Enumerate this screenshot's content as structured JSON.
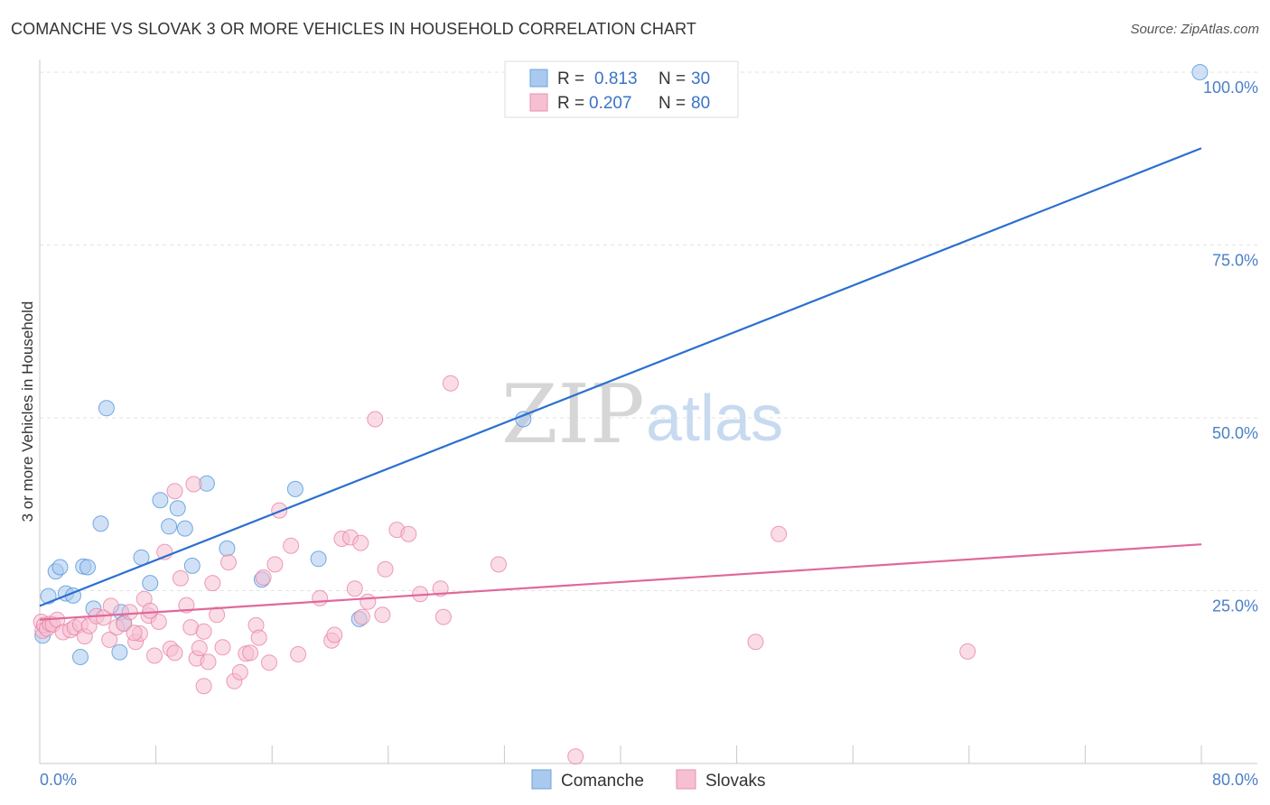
{
  "title": "COMANCHE VS SLOVAK 3 OR MORE VEHICLES IN HOUSEHOLD CORRELATION CHART",
  "source": "Source: ZipAtlas.com",
  "watermark": {
    "zip": "ZIP",
    "atlas": "atlas"
  },
  "legend": {
    "rows": [
      {
        "r_label": "R =",
        "r_value": "0.813",
        "n_label": "N =",
        "n_value": "30",
        "color": "#4a90d9"
      },
      {
        "r_label": "R =",
        "r_value": "0.207",
        "n_label": "N =",
        "n_value": "80",
        "color": "#e87ea0"
      }
    ]
  },
  "chart_data": {
    "type": "scatter",
    "title": "COMANCHE VS SLOVAK 3 OR MORE VEHICLES IN HOUSEHOLD CORRELATION CHART",
    "ylabel": "3 or more Vehicles in Household",
    "xlabel": "",
    "xlim": [
      0,
      80
    ],
    "ylim": [
      0,
      100
    ],
    "x_tick_labels": [
      "0.0%",
      "80.0%"
    ],
    "y_tick_labels": [
      {
        "value": 100,
        "label": "100.0%"
      },
      {
        "value": 75,
        "label": "75.0%"
      },
      {
        "value": 50,
        "label": "50.0%"
      },
      {
        "value": 25,
        "label": "25.0%"
      }
    ],
    "grid": true,
    "legend_position": "top-center",
    "series": [
      {
        "name": "Comanche",
        "color": "#4a90d9",
        "fill": "#a9c9ef",
        "trend": {
          "x": [
            0,
            80
          ],
          "y": [
            22.8,
            89.0
          ]
        },
        "points": [
          [
            0.2,
            18.5
          ],
          [
            0.6,
            24.2
          ],
          [
            1.1,
            27.8
          ],
          [
            1.4,
            28.4
          ],
          [
            1.8,
            24.6
          ],
          [
            2.3,
            24.3
          ],
          [
            2.8,
            15.4
          ],
          [
            3.0,
            28.5
          ],
          [
            3.3,
            28.4
          ],
          [
            3.7,
            22.4
          ],
          [
            4.2,
            34.7
          ],
          [
            4.6,
            51.4
          ],
          [
            5.5,
            16.1
          ],
          [
            5.6,
            21.9
          ],
          [
            5.8,
            20.3
          ],
          [
            7.0,
            29.8
          ],
          [
            7.6,
            26.1
          ],
          [
            8.3,
            38.1
          ],
          [
            8.9,
            34.3
          ],
          [
            9.5,
            36.9
          ],
          [
            10.0,
            34.0
          ],
          [
            10.5,
            28.6
          ],
          [
            11.5,
            40.5
          ],
          [
            12.9,
            31.1
          ],
          [
            15.3,
            26.6
          ],
          [
            17.6,
            39.7
          ],
          [
            19.2,
            29.6
          ],
          [
            22.0,
            20.9
          ],
          [
            33.3,
            49.8
          ],
          [
            79.9,
            100.0
          ]
        ]
      },
      {
        "name": "Slovaks",
        "color": "#e87ea0",
        "fill": "#f6c0d2",
        "trend": {
          "x": [
            0,
            80
          ],
          "y": [
            20.8,
            31.7
          ]
        },
        "points": [
          [
            0.1,
            20.5
          ],
          [
            0.2,
            19.2
          ],
          [
            0.3,
            20.0
          ],
          [
            0.5,
            19.5
          ],
          [
            0.7,
            20.2
          ],
          [
            0.9,
            20.1
          ],
          [
            1.2,
            20.8
          ],
          [
            1.6,
            19.0
          ],
          [
            2.1,
            19.3
          ],
          [
            2.4,
            19.7
          ],
          [
            2.8,
            20.1
          ],
          [
            3.1,
            18.4
          ],
          [
            3.4,
            19.9
          ],
          [
            3.9,
            21.3
          ],
          [
            4.4,
            21.1
          ],
          [
            4.8,
            17.9
          ],
          [
            5.3,
            19.7
          ],
          [
            5.8,
            20.2
          ],
          [
            6.2,
            21.9
          ],
          [
            6.6,
            17.6
          ],
          [
            6.9,
            18.8
          ],
          [
            7.2,
            23.8
          ],
          [
            7.5,
            21.4
          ],
          [
            7.9,
            15.6
          ],
          [
            8.2,
            20.5
          ],
          [
            8.6,
            30.6
          ],
          [
            9.0,
            16.6
          ],
          [
            9.3,
            16.0
          ],
          [
            9.7,
            26.8
          ],
          [
            10.1,
            22.9
          ],
          [
            10.4,
            19.7
          ],
          [
            10.8,
            15.2
          ],
          [
            11.0,
            16.7
          ],
          [
            11.3,
            19.1
          ],
          [
            11.6,
            14.7
          ],
          [
            11.9,
            26.1
          ],
          [
            12.2,
            21.5
          ],
          [
            12.6,
            16.8
          ],
          [
            13.0,
            29.1
          ],
          [
            13.4,
            11.9
          ],
          [
            13.8,
            13.2
          ],
          [
            14.2,
            15.9
          ],
          [
            14.5,
            16.0
          ],
          [
            14.9,
            20.0
          ],
          [
            15.1,
            18.2
          ],
          [
            15.4,
            26.9
          ],
          [
            15.8,
            14.6
          ],
          [
            16.2,
            28.8
          ],
          [
            16.5,
            36.6
          ],
          [
            17.3,
            31.5
          ],
          [
            17.8,
            15.8
          ],
          [
            19.3,
            23.9
          ],
          [
            20.1,
            17.8
          ],
          [
            20.3,
            18.6
          ],
          [
            20.8,
            32.5
          ],
          [
            21.4,
            32.7
          ],
          [
            21.7,
            25.3
          ],
          [
            22.1,
            31.9
          ],
          [
            22.2,
            21.2
          ],
          [
            22.6,
            23.4
          ],
          [
            23.1,
            49.8
          ],
          [
            23.6,
            21.5
          ],
          [
            23.8,
            28.1
          ],
          [
            24.6,
            33.8
          ],
          [
            25.4,
            33.2
          ],
          [
            26.2,
            24.5
          ],
          [
            27.6,
            25.3
          ],
          [
            27.8,
            21.2
          ],
          [
            28.3,
            55.0
          ],
          [
            31.6,
            28.8
          ],
          [
            36.9,
            1.0
          ],
          [
            9.3,
            39.4
          ],
          [
            10.6,
            40.4
          ],
          [
            11.3,
            11.2
          ],
          [
            4.9,
            22.8
          ],
          [
            6.5,
            18.9
          ],
          [
            49.3,
            17.6
          ],
          [
            50.9,
            33.2
          ],
          [
            63.9,
            16.2
          ],
          [
            7.6,
            22.1
          ]
        ]
      }
    ]
  }
}
